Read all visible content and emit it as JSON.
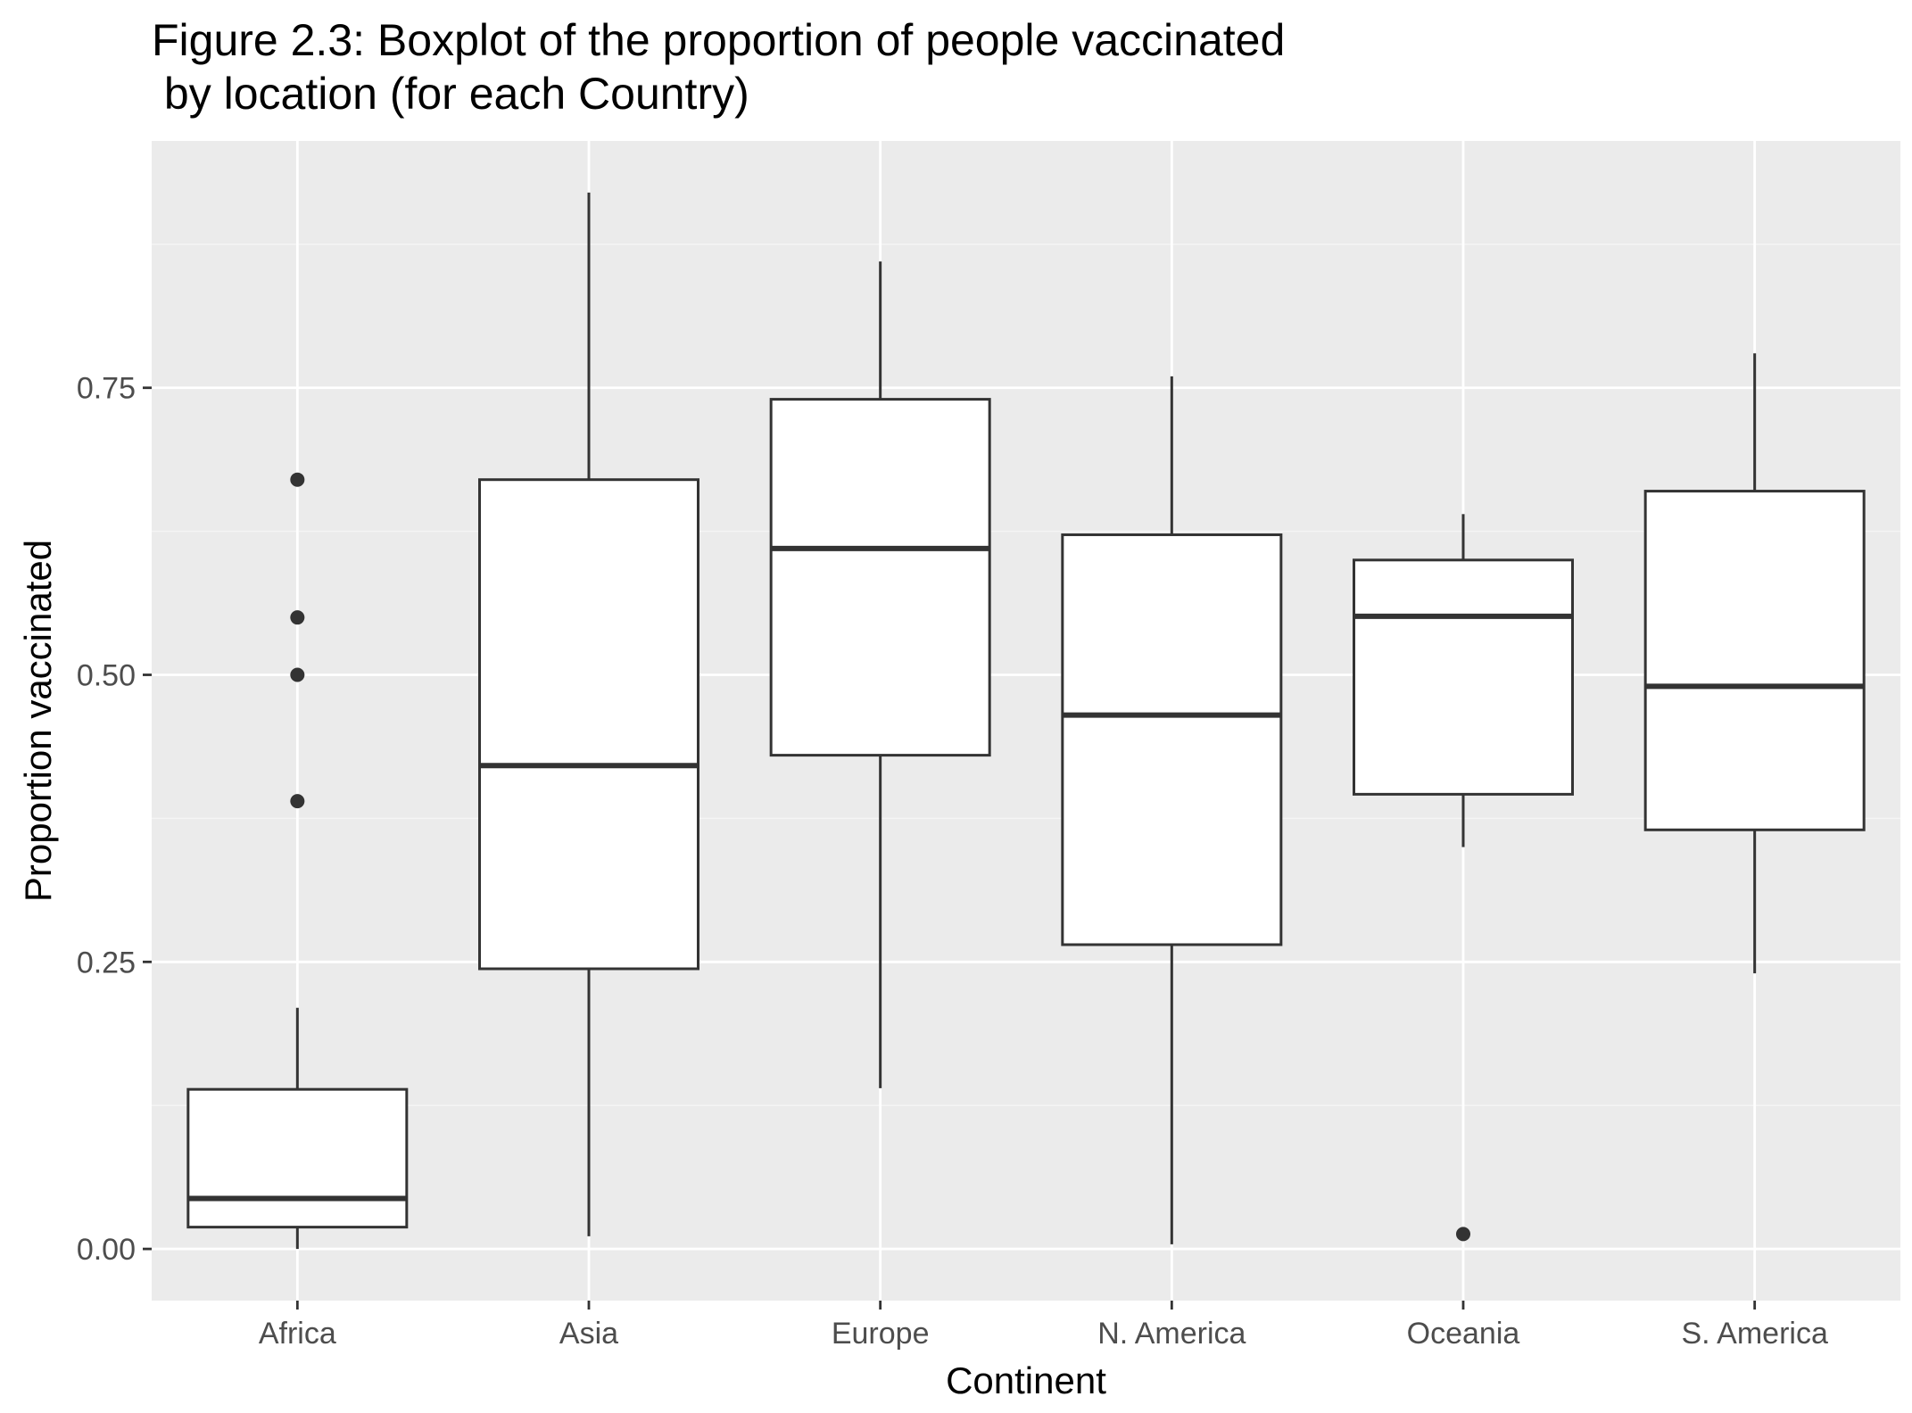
{
  "chart_data": {
    "type": "boxplot",
    "title": "Figure 2.3: Boxplot of the proportion of people vaccinated",
    "subtitle": " by location (for each Country)",
    "xlabel": "Continent",
    "ylabel": "Proportion vaccinated",
    "ylim": [
      -0.045,
      0.965
    ],
    "yticks": [
      0.0,
      0.25,
      0.5,
      0.75
    ],
    "ytick_labels": [
      "0.00",
      "0.25",
      "0.50",
      "0.75"
    ],
    "categories": [
      "Africa",
      "Asia",
      "Europe",
      "N. America",
      "Oceania",
      "S. America"
    ],
    "boxes": [
      {
        "category": "Africa",
        "whisker_low": 0.0,
        "q1": 0.019,
        "median": 0.044,
        "q3": 0.139,
        "whisker_high": 0.21,
        "outliers": [
          0.39,
          0.5,
          0.55,
          0.67
        ]
      },
      {
        "category": "Asia",
        "whisker_low": 0.011,
        "q1": 0.244,
        "median": 0.421,
        "q3": 0.67,
        "whisker_high": 0.92,
        "outliers": []
      },
      {
        "category": "Europe",
        "whisker_low": 0.14,
        "q1": 0.43,
        "median": 0.61,
        "q3": 0.74,
        "whisker_high": 0.86,
        "outliers": []
      },
      {
        "category": "N. America",
        "whisker_low": 0.004,
        "q1": 0.265,
        "median": 0.465,
        "q3": 0.622,
        "whisker_high": 0.76,
        "outliers": []
      },
      {
        "category": "Oceania",
        "whisker_low": 0.35,
        "q1": 0.396,
        "median": 0.551,
        "q3": 0.6,
        "whisker_high": 0.64,
        "outliers": [
          0.013
        ]
      },
      {
        "category": "S. America",
        "whisker_low": 0.24,
        "q1": 0.365,
        "median": 0.49,
        "q3": 0.66,
        "whisker_high": 0.78,
        "outliers": []
      }
    ],
    "grid": true,
    "colors": {
      "panel_background": "#ebebeb",
      "grid_major": "#ffffff",
      "grid_minor": "#f5f5f5",
      "box_fill": "#ffffff",
      "box_stroke": "#333333",
      "axis_text": "#4d4d4d",
      "tick_mark": "#333333"
    }
  }
}
